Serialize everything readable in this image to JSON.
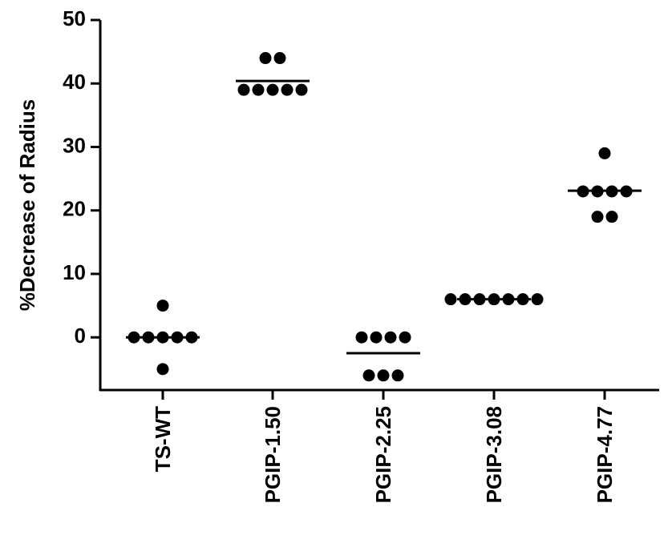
{
  "chart_data": {
    "type": "dot",
    "y_label": "%Decrease of Radius",
    "categories": [
      "TS-WT",
      "PGIP-1.50",
      "PGIP-2.25",
      "PGIP-3.08",
      "PGIP-4.77"
    ],
    "groups": [
      [
        5,
        0,
        0,
        0,
        0,
        0,
        -5
      ],
      [
        44,
        44,
        39,
        39,
        39,
        39,
        39
      ],
      [
        0,
        0,
        0,
        0,
        -6,
        -6,
        -6
      ],
      [
        6,
        6,
        6,
        6,
        6,
        6,
        6
      ],
      [
        29,
        23,
        23,
        23,
        23,
        19,
        19
      ]
    ],
    "means": [
      0,
      40.4,
      -2.5,
      6,
      23.1
    ],
    "color": "#000000",
    "ylim": [
      -8.3,
      50
    ],
    "yticks": [
      0,
      10,
      20,
      30,
      40,
      50
    ]
  }
}
